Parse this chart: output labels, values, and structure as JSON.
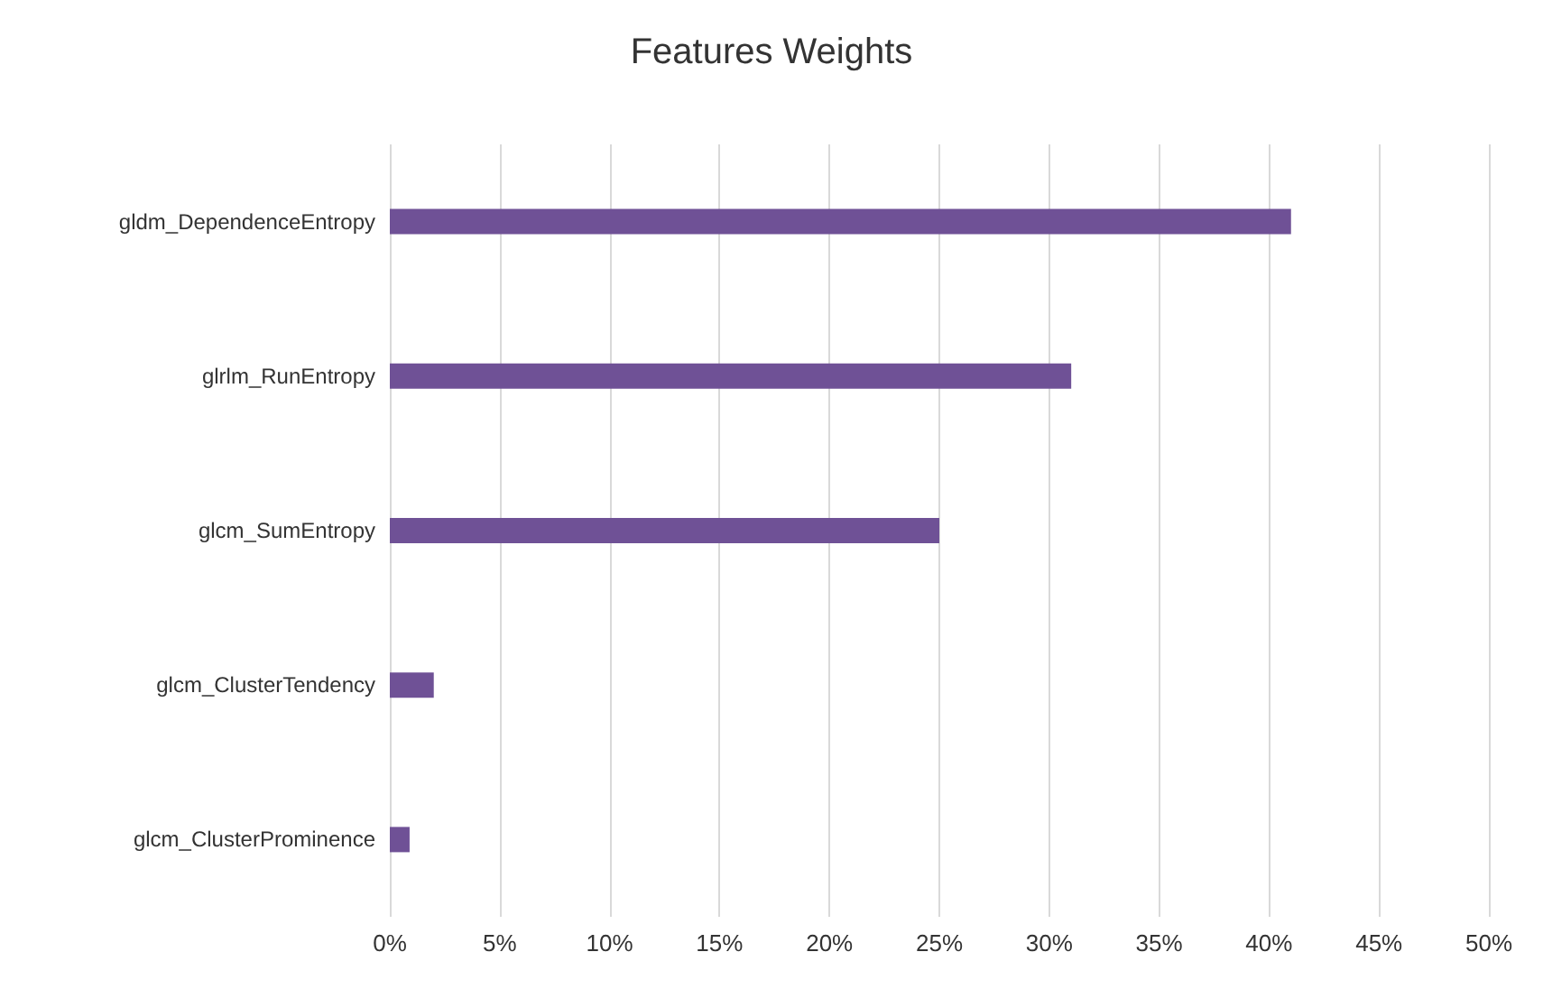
{
  "chart_data": {
    "type": "bar",
    "title": "Features Weights",
    "orientation": "horizontal",
    "categories": [
      "gldm_DependenceEntropy",
      "glrlm_RunEntropy",
      "glcm_SumEntropy",
      "glcm_ClusterTendency",
      "glcm_ClusterProminence"
    ],
    "values": [
      41,
      31,
      25,
      2,
      0.9
    ],
    "color": "#6f5196",
    "xlim": [
      0,
      50
    ],
    "xticks": [
      {
        "value": 0,
        "label": "0%"
      },
      {
        "value": 5,
        "label": "5%"
      },
      {
        "value": 10,
        "label": "10%"
      },
      {
        "value": 15,
        "label": "15%"
      },
      {
        "value": 20,
        "label": "20%"
      },
      {
        "value": 25,
        "label": "25%"
      },
      {
        "value": 30,
        "label": "30%"
      },
      {
        "value": 35,
        "label": "35%"
      },
      {
        "value": 40,
        "label": "40%"
      },
      {
        "value": 45,
        "label": "45%"
      },
      {
        "value": 50,
        "label": "50%"
      }
    ],
    "grid": "x"
  }
}
